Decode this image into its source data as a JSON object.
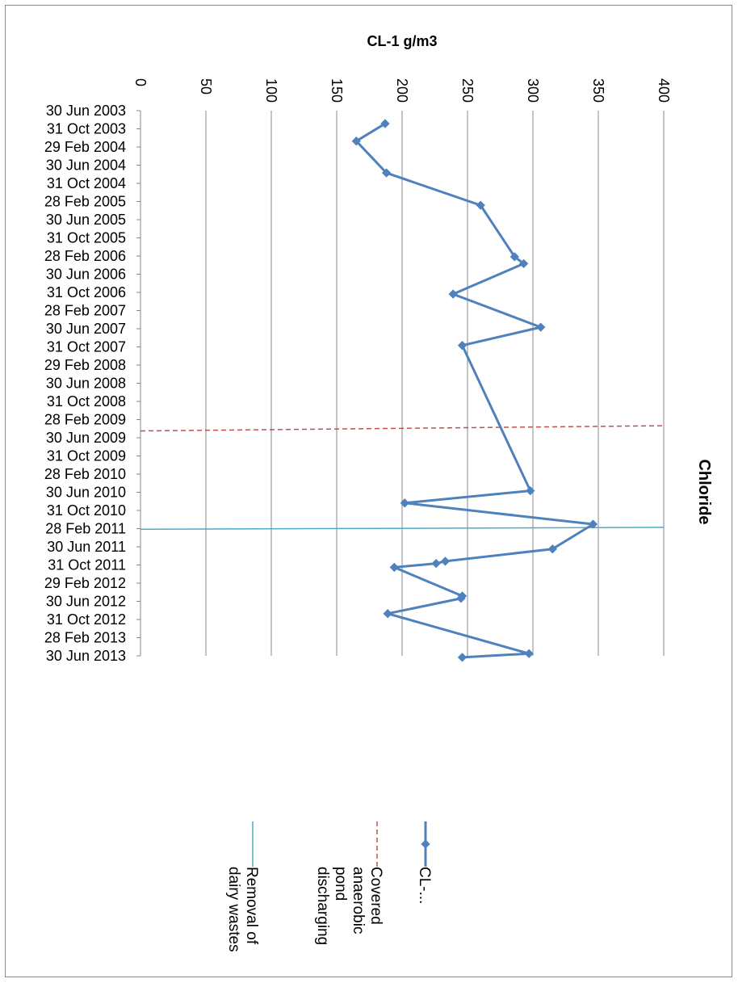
{
  "chart_data": {
    "type": "line",
    "title": "Chloride",
    "ylabel": "CL-1 g/m3",
    "xlabel": "",
    "ylim": [
      0,
      400
    ],
    "value_ticks": [
      "0",
      "50",
      "100",
      "150",
      "200",
      "250",
      "300",
      "350",
      "400"
    ],
    "date_ticks": [
      "30 Jun 2003",
      "31 Oct 2003",
      "29 Feb 2004",
      "30 Jun 2004",
      "31 Oct 2004",
      "28 Feb 2005",
      "30 Jun 2005",
      "31 Oct 2005",
      "28 Feb 2006",
      "30 Jun 2006",
      "31 Oct 2006",
      "28 Feb 2007",
      "30 Jun 2007",
      "31 Oct 2007",
      "29 Feb 2008",
      "30 Jun 2008",
      "31 Oct 2008",
      "28 Feb 2009",
      "30 Jun 2009",
      "31 Oct 2009",
      "28 Feb 2010",
      "30 Jun 2010",
      "31 Oct 2010",
      "28 Feb 2011",
      "30 Jun 2011",
      "31 Oct 2011",
      "29 Feb 2012",
      "30 Jun 2012",
      "31 Oct 2012",
      "28 Feb 2013",
      "30 Jun 2013"
    ],
    "date_range": [
      "2003-06-30",
      "2013-06-30"
    ],
    "grid": true,
    "legend_position": "bottom",
    "orientation": "rotated 90 degrees clockwise",
    "series": [
      {
        "name": "CL-...",
        "color": "#4f81bd",
        "marker": "diamond",
        "points": [
          {
            "x": "2003-09-25",
            "y": 187
          },
          {
            "x": "2004-01-20",
            "y": 165
          },
          {
            "x": "2004-08-20",
            "y": 188
          },
          {
            "x": "2005-03-25",
            "y": 260
          },
          {
            "x": "2006-03-05",
            "y": 286
          },
          {
            "x": "2006-04-20",
            "y": 293
          },
          {
            "x": "2006-11-10",
            "y": 239
          },
          {
            "x": "2007-06-20",
            "y": 306
          },
          {
            "x": "2007-10-20",
            "y": 246
          },
          {
            "x": "2010-06-20",
            "y": 298
          },
          {
            "x": "2010-09-10",
            "y": 202
          },
          {
            "x": "2011-01-30",
            "y": 346
          },
          {
            "x": "2011-07-15",
            "y": 315
          },
          {
            "x": "2011-10-05",
            "y": 233
          },
          {
            "x": "2011-10-20",
            "y": 226
          },
          {
            "x": "2011-11-15",
            "y": 194
          },
          {
            "x": "2012-05-25",
            "y": 246
          },
          {
            "x": "2012-06-10",
            "y": 245
          },
          {
            "x": "2012-09-20",
            "y": 189
          },
          {
            "x": "2013-06-15",
            "y": 297
          },
          {
            "x": "2013-07-10",
            "y": 246
          }
        ]
      }
    ],
    "events": [
      {
        "name": "Covered anaerobic pond discharging",
        "color": "#c0504d",
        "style": "dashed",
        "x_start": "2009-05-15",
        "x_end": "2009-04-10"
      },
      {
        "name": "Removal of dairy wastes",
        "color": "#4bacc6",
        "style": "solid",
        "x_start": "2011-03-05",
        "x_end": "2011-02-20"
      }
    ]
  },
  "legend": [
    {
      "key": "series",
      "label_lines": [
        "CL-..."
      ],
      "color": "#4f81bd",
      "style": "marker-line"
    },
    {
      "key": "covered",
      "label_lines": [
        "Covered",
        "anaerobic",
        "pond",
        "discharging"
      ],
      "color": "#c0504d",
      "style": "dashed"
    },
    {
      "key": "removal",
      "label_lines": [
        "Removal of",
        "dairy wastes"
      ],
      "color": "#4bacc6",
      "style": "solid"
    }
  ]
}
